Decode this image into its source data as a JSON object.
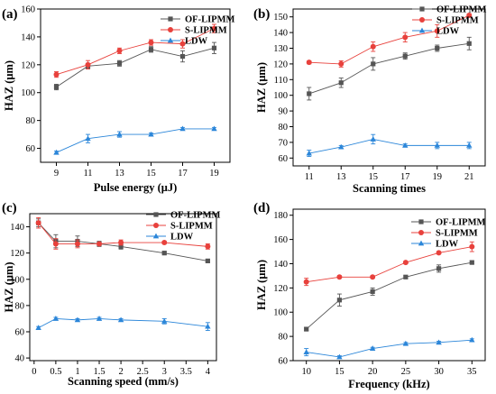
{
  "chart_data": [
    {
      "type": "line",
      "panel_label": "(a)",
      "xlabel": "Pulse energy (μJ)",
      "ylabel": "HAZ (μm)",
      "x": [
        9,
        11,
        13,
        15,
        17,
        19
      ],
      "xticks": [
        9,
        11,
        13,
        15,
        17,
        19
      ],
      "xlim": [
        8,
        20
      ],
      "ylim": [
        50,
        160
      ],
      "yticks": [
        60,
        80,
        100,
        120,
        140,
        160
      ],
      "legend_position": "top-right",
      "series": [
        {
          "name": "OF-LIPMM",
          "color": "#555555",
          "marker": "square",
          "values": [
            104,
            119,
            121,
            131,
            126,
            132
          ],
          "errors": [
            2,
            2,
            2,
            2,
            4,
            4
          ]
        },
        {
          "name": "S-LIPMM",
          "color": "#e8413c",
          "marker": "circle",
          "values": [
            113,
            120,
            130,
            136,
            135,
            146
          ],
          "errors": [
            2,
            3,
            2,
            2,
            3,
            3
          ]
        },
        {
          "name": "LDW",
          "color": "#2b86d9",
          "marker": "triangle",
          "values": [
            57,
            67,
            70,
            70,
            74,
            74
          ],
          "errors": [
            1,
            3,
            2,
            1,
            1,
            1
          ]
        }
      ]
    },
    {
      "type": "line",
      "panel_label": "(b)",
      "xlabel": "Scanning times",
      "ylabel": "HAZ (μm)",
      "x": [
        11,
        13,
        15,
        17,
        19,
        21
      ],
      "xticks": [
        11,
        13,
        15,
        17,
        19,
        21
      ],
      "xlim": [
        10,
        22
      ],
      "ylim": [
        55,
        155
      ],
      "yticks": [
        60,
        70,
        80,
        90,
        100,
        110,
        120,
        130,
        140,
        150
      ],
      "legend_position": "top-right",
      "series": [
        {
          "name": "OF-LIPMM",
          "color": "#555555",
          "marker": "square",
          "values": [
            101,
            108,
            120,
            125,
            130,
            133
          ],
          "errors": [
            4,
            3,
            4,
            2,
            2,
            4
          ]
        },
        {
          "name": "S-LIPMM",
          "color": "#e8413c",
          "marker": "circle",
          "values": [
            121,
            120,
            131,
            137,
            141,
            151
          ],
          "errors": [
            1,
            2,
            3,
            3,
            4,
            1
          ]
        },
        {
          "name": "LDW",
          "color": "#2b86d9",
          "marker": "triangle",
          "values": [
            63,
            67,
            72,
            68,
            68,
            68
          ],
          "errors": [
            2,
            1,
            3,
            1,
            2,
            2
          ]
        }
      ]
    },
    {
      "type": "line",
      "panel_label": "(c)",
      "xlabel": "Scanning speed (mm/s)",
      "ylabel": "HAZ (μm)",
      "x": [
        0.1,
        0.5,
        1.0,
        1.5,
        2.0,
        3.0,
        4.0
      ],
      "xticks": [
        0.0,
        0.5,
        1.0,
        1.5,
        2.0,
        2.5,
        3.0,
        3.5,
        4.0
      ],
      "xlim": [
        -0.1,
        4.2
      ],
      "ylim": [
        38,
        150
      ],
      "yticks": [
        40,
        60,
        80,
        100,
        120,
        140
      ],
      "legend_position": "top-right",
      "series": [
        {
          "name": "OF-LIPMM",
          "color": "#555555",
          "marker": "square",
          "values": [
            143,
            129,
            129,
            127,
            125,
            120,
            114
          ],
          "errors": [
            3,
            5,
            4,
            2,
            2,
            1,
            1
          ]
        },
        {
          "name": "S-LIPMM",
          "color": "#e8413c",
          "marker": "circle",
          "values": [
            143,
            127,
            127,
            127,
            128,
            128,
            125
          ],
          "errors": [
            4,
            4,
            3,
            1,
            2,
            1,
            2
          ]
        },
        {
          "name": "LDW",
          "color": "#2b86d9",
          "marker": "triangle",
          "values": [
            63,
            70,
            69,
            70,
            69,
            68,
            64
          ],
          "errors": [
            1,
            1,
            1,
            1,
            1,
            2,
            3
          ]
        }
      ]
    },
    {
      "type": "line",
      "panel_label": "(d)",
      "xlabel": "Frequency (kHz)",
      "ylabel": "HAZ (μm)",
      "x": [
        10,
        15,
        20,
        25,
        30,
        35
      ],
      "xticks": [
        10,
        15,
        20,
        25,
        30,
        35
      ],
      "xlim": [
        8,
        37
      ],
      "ylim": [
        60,
        185
      ],
      "yticks": [
        60,
        80,
        100,
        120,
        140,
        160,
        180
      ],
      "legend_position": "top-right",
      "series": [
        {
          "name": "OF-LIPMM",
          "color": "#555555",
          "marker": "square",
          "values": [
            86,
            110,
            117,
            129,
            136,
            141
          ],
          "errors": [
            1,
            5,
            3,
            1,
            3,
            1
          ]
        },
        {
          "name": "S-LIPMM",
          "color": "#e8413c",
          "marker": "circle",
          "values": [
            125,
            129,
            129,
            141,
            149,
            154
          ],
          "errors": [
            3,
            1,
            1,
            1,
            1,
            4
          ]
        },
        {
          "name": "LDW",
          "color": "#2b86d9",
          "marker": "triangle",
          "values": [
            67,
            63,
            70,
            74,
            75,
            77
          ],
          "errors": [
            3,
            1,
            1,
            1,
            1,
            1
          ]
        }
      ]
    }
  ]
}
